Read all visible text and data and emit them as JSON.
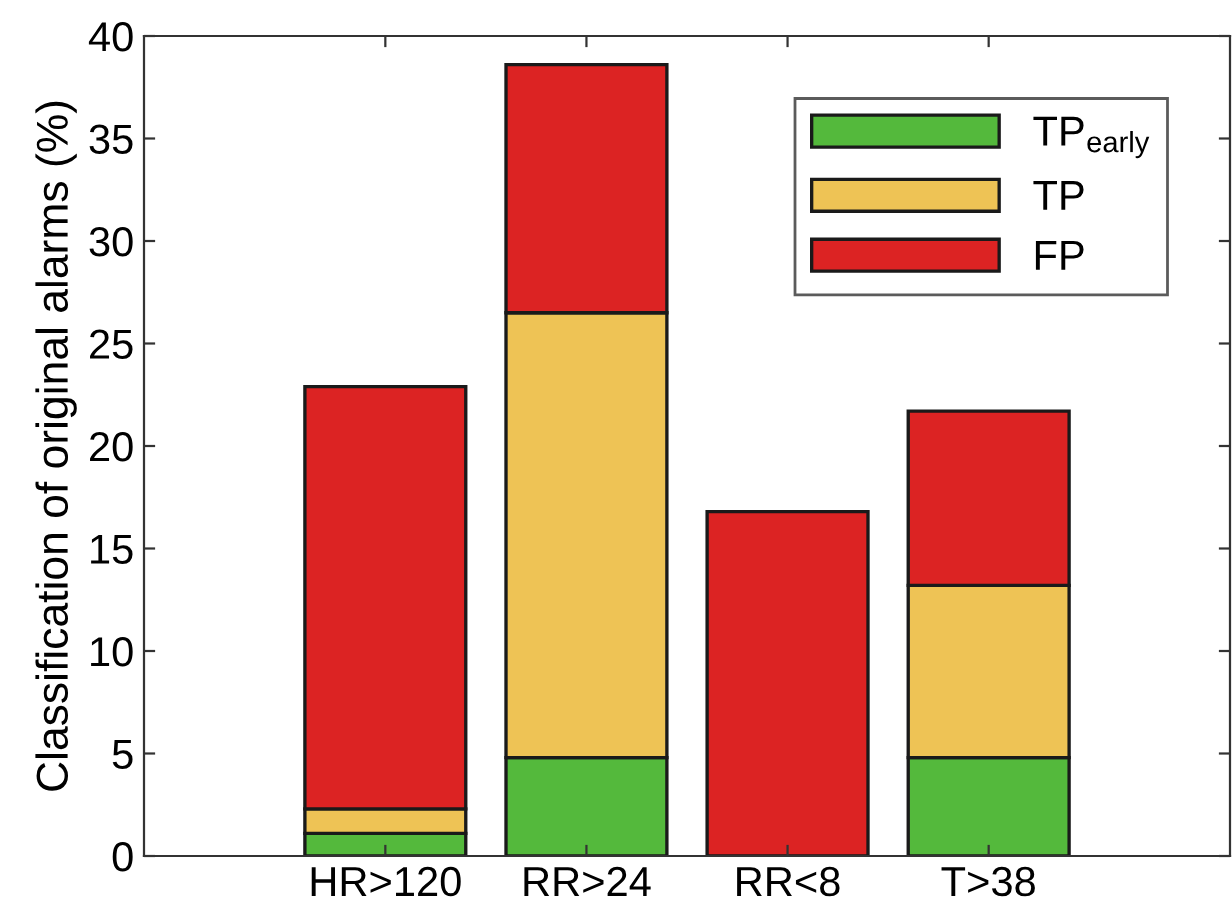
{
  "chart_data": {
    "type": "bar",
    "stacked": true,
    "ylabel": "Classification of original alarms (%)",
    "categories": [
      "HR>120",
      "RR>24",
      "RR<8",
      "T>38"
    ],
    "series": [
      {
        "name": "TP$_{early}$",
        "color": "#54b93c",
        "values": [
          1.1,
          4.8,
          0,
          4.8
        ]
      },
      {
        "name": "TP",
        "color": "#eec355",
        "values": [
          1.2,
          21.7,
          0,
          8.4
        ]
      },
      {
        "name": "FP",
        "color": "#dc2323",
        "values": [
          20.6,
          12.1,
          16.8,
          8.5
        ]
      }
    ],
    "ylim": [
      0,
      40
    ],
    "yticks": [
      0,
      5,
      10,
      15,
      20,
      25,
      30,
      35,
      40
    ],
    "grid": false,
    "legend": "top right"
  }
}
